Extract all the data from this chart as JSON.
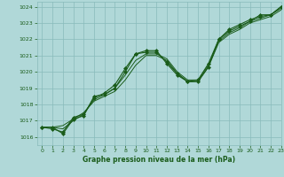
{
  "background_color": "#b0d8d8",
  "plot_bg": "#b0d8d8",
  "grid_color": "#88bbbb",
  "line_color": "#1a5c1a",
  "marker_color": "#1a5c1a",
  "xlabel": "Graphe pression niveau de la mer (hPa)",
  "ylim": [
    1015.5,
    1024.3
  ],
  "xlim": [
    -0.5,
    23
  ],
  "yticks": [
    1016,
    1017,
    1018,
    1019,
    1020,
    1021,
    1022,
    1023,
    1024
  ],
  "xticks": [
    0,
    1,
    2,
    3,
    4,
    5,
    6,
    7,
    8,
    9,
    10,
    11,
    12,
    13,
    14,
    15,
    16,
    17,
    18,
    19,
    20,
    21,
    22,
    23
  ],
  "series_main1": [
    1016.6,
    1016.6,
    1016.2,
    1017.1,
    1017.3,
    1018.5,
    1018.6,
    1019.0,
    1020.0,
    1021.1,
    1021.3,
    1021.3,
    1020.5,
    1019.8,
    1019.4,
    1019.4,
    1020.3,
    1022.0,
    1022.5,
    1022.8,
    1023.1,
    1023.5,
    1023.5,
    1024.0
  ],
  "series_main2": [
    1016.6,
    1016.5,
    1016.3,
    1017.2,
    1017.4,
    1018.4,
    1018.7,
    1019.2,
    1020.2,
    1021.1,
    1021.2,
    1021.2,
    1020.6,
    1019.9,
    1019.4,
    1019.5,
    1020.5,
    1022.0,
    1022.6,
    1022.9,
    1023.2,
    1023.4,
    1023.5,
    1024.0
  ],
  "series_smooth1": [
    1016.6,
    1016.6,
    1016.7,
    1017.1,
    1017.5,
    1018.2,
    1018.5,
    1018.8,
    1019.5,
    1020.4,
    1021.0,
    1021.0,
    1020.7,
    1019.9,
    1019.4,
    1019.4,
    1020.3,
    1021.8,
    1022.3,
    1022.6,
    1023.0,
    1023.2,
    1023.4,
    1023.8
  ],
  "series_smooth2": [
    1016.6,
    1016.6,
    1016.5,
    1017.0,
    1017.4,
    1018.3,
    1018.6,
    1019.0,
    1019.8,
    1020.7,
    1021.1,
    1021.1,
    1020.8,
    1020.0,
    1019.5,
    1019.5,
    1020.4,
    1021.9,
    1022.4,
    1022.7,
    1023.1,
    1023.3,
    1023.5,
    1023.9
  ]
}
